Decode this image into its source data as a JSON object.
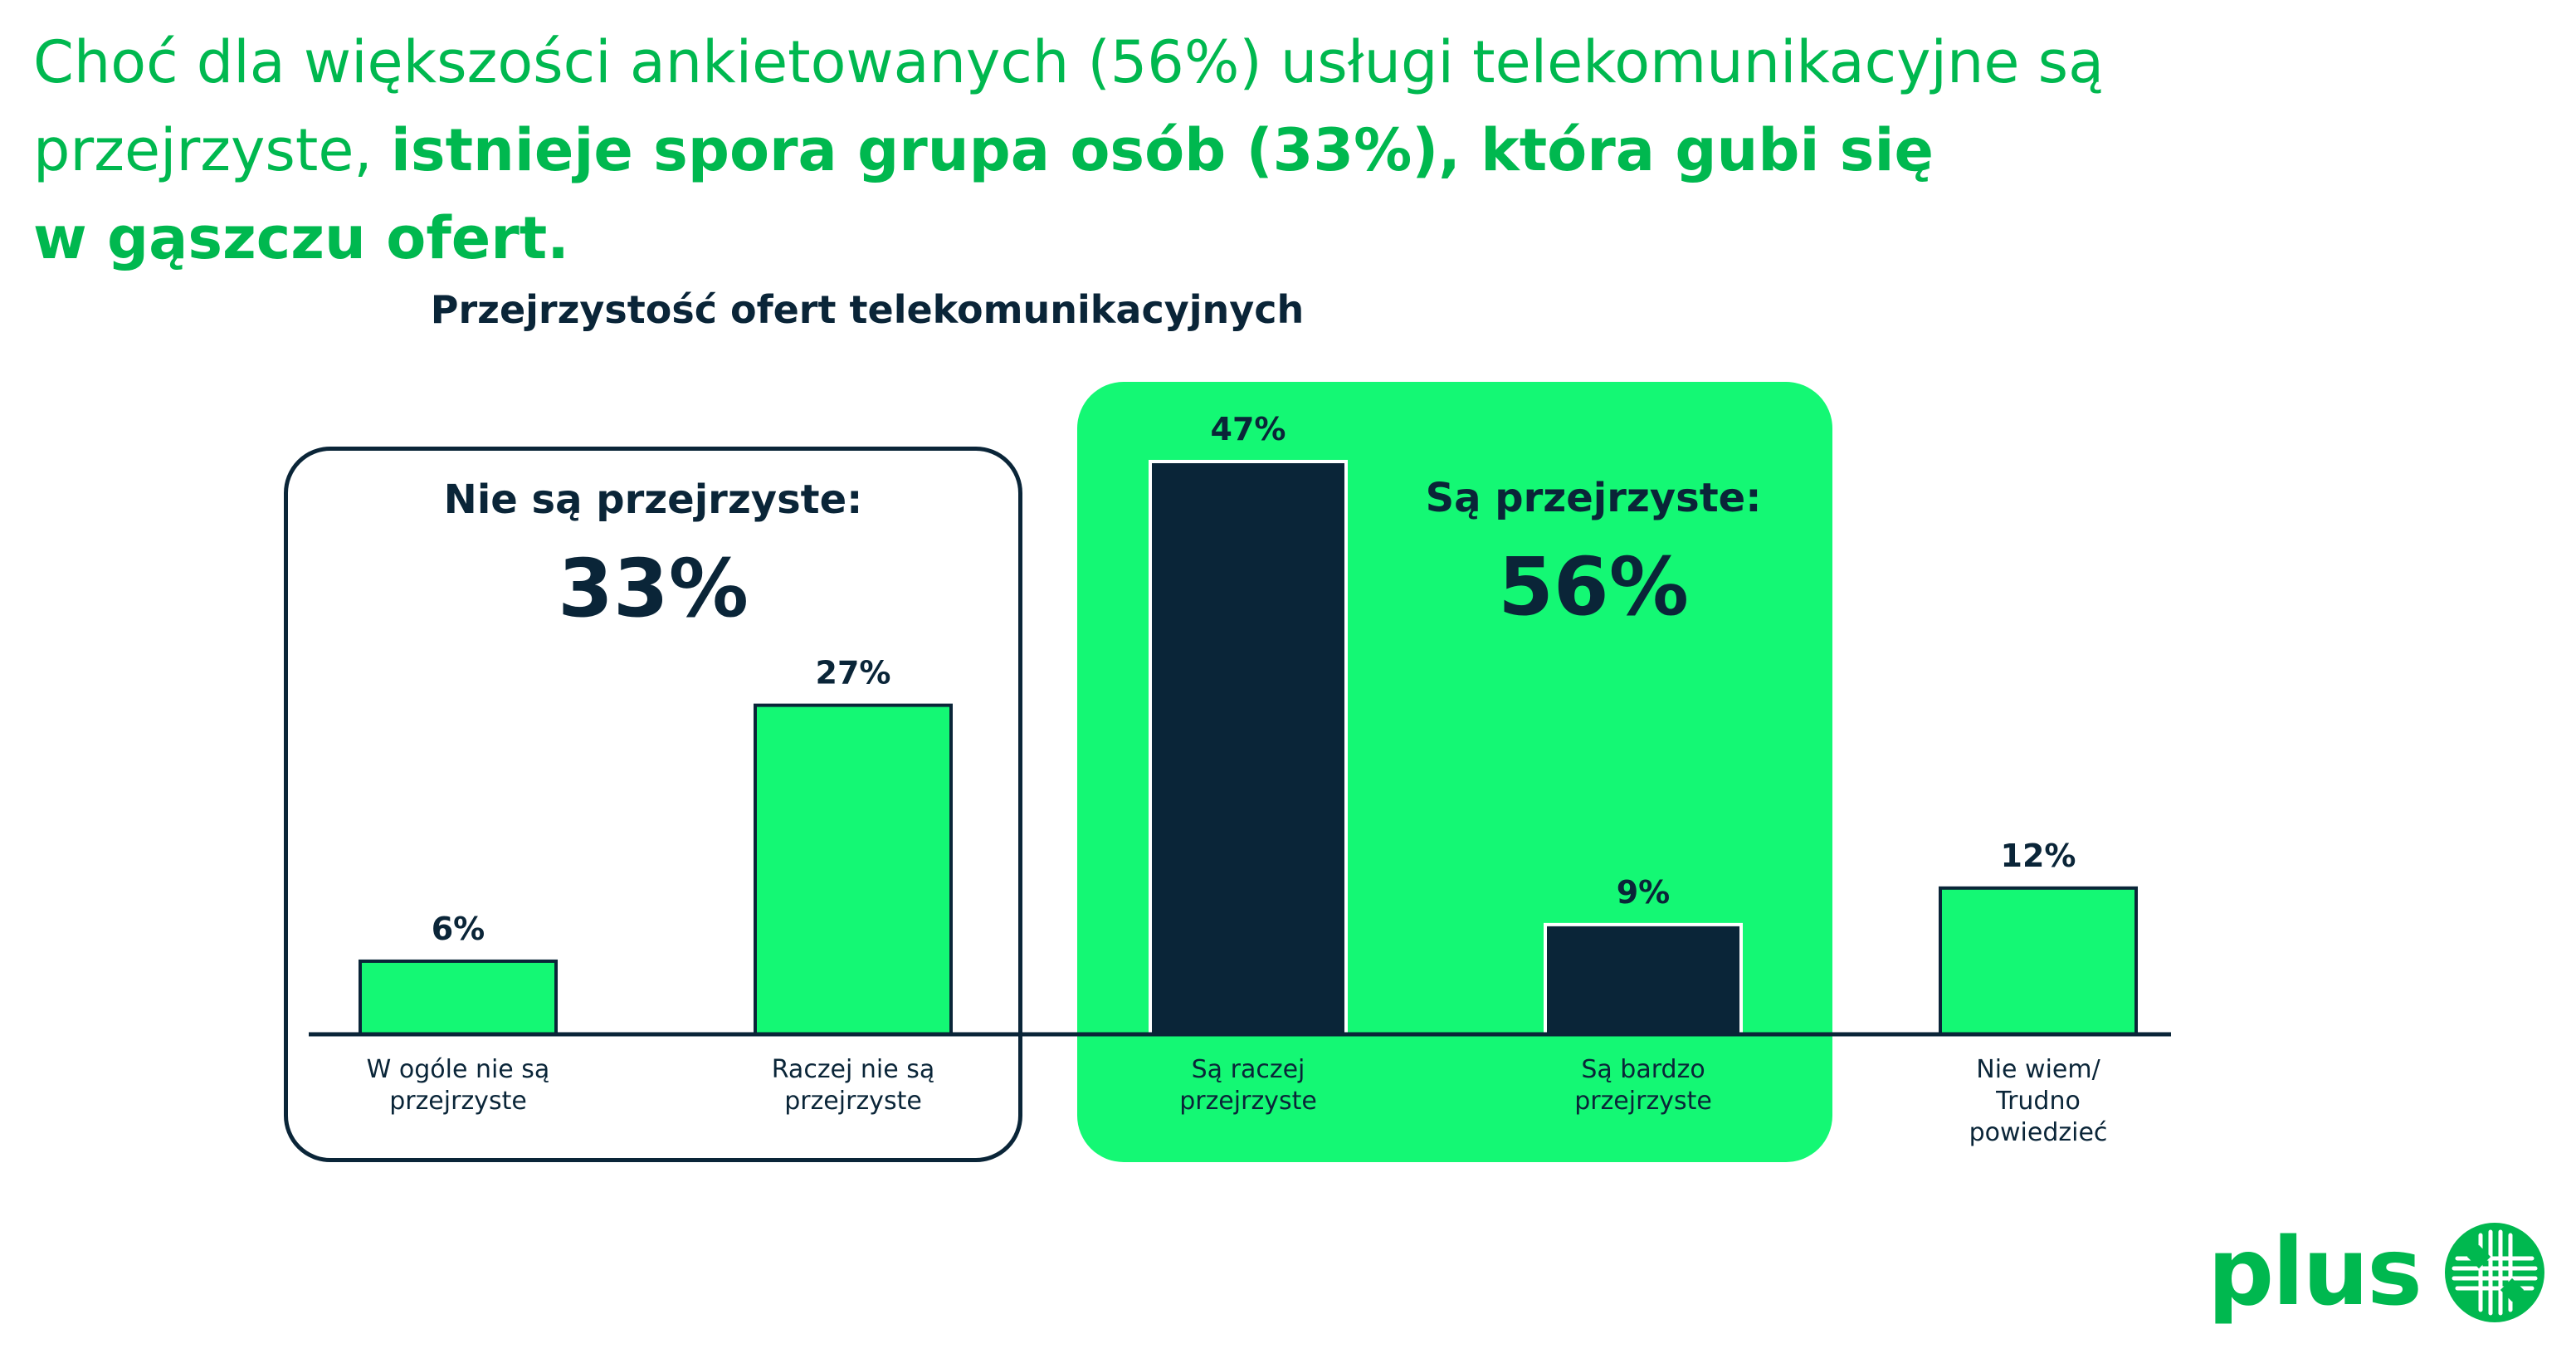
{
  "headline": {
    "line1": "Choć dla większości ankietowanych (56%) usługi telekomunikacyjne są",
    "line2_regular": "przejrzyste, ",
    "line2_bold": "istnieje spora grupa osób (33%), która gubi się",
    "line3_bold": "w gąszczu ofert."
  },
  "groups": {
    "not_transparent": {
      "label": "Nie są przejrzyste:",
      "value": "33%"
    },
    "transparent": {
      "label": "Są przejrzyste:",
      "value": "56%"
    }
  },
  "logo": {
    "text": "plus"
  },
  "colors": {
    "green_bar": "#14f874",
    "navy_bar": "#0a2538",
    "brand_green": "#00b84f",
    "highlight_box": "#14f874"
  },
  "chart_data": {
    "type": "bar",
    "title": "Przejrzystość ofert telekomunikacyjnych",
    "categories": [
      [
        "W ogóle nie są",
        "przejrzyste"
      ],
      [
        "Raczej nie są",
        "przejrzyste"
      ],
      [
        "Są raczej",
        "przejrzyste"
      ],
      [
        "Są bardzo",
        "przejrzyste"
      ],
      [
        "Nie wiem/",
        "Trudno",
        "powiedzieć"
      ]
    ],
    "values": [
      6,
      27,
      47,
      9,
      12
    ],
    "value_labels": [
      "6%",
      "27%",
      "47%",
      "9%",
      "12%"
    ],
    "bar_colors": [
      "#14f874",
      "#14f874",
      "#0a2538",
      "#0a2538",
      "#14f874"
    ],
    "ylim": [
      0,
      47
    ],
    "grid": false,
    "legend": "none"
  }
}
